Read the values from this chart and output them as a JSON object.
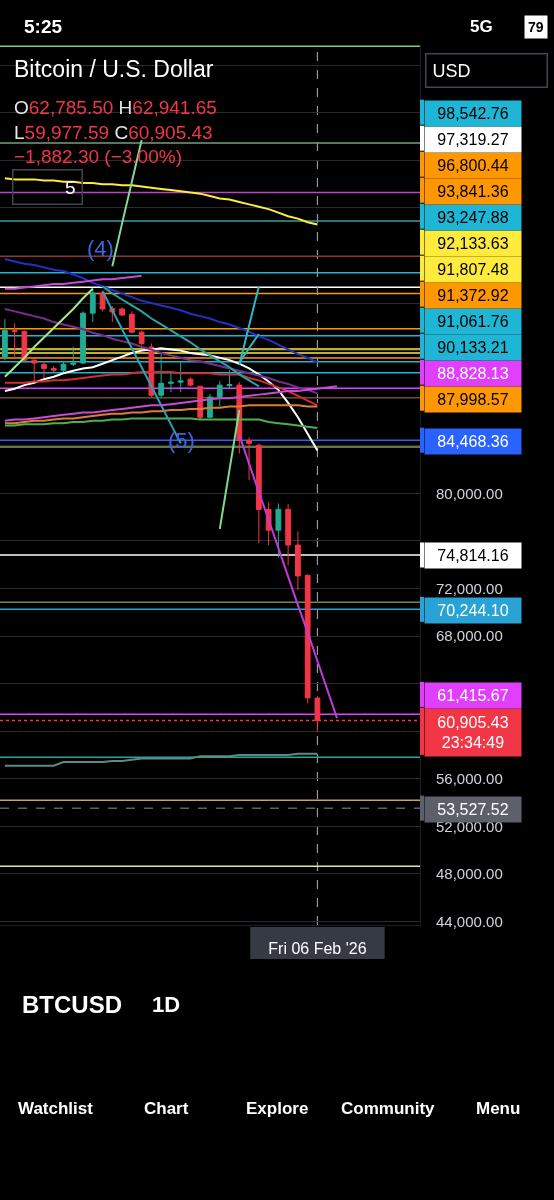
{
  "chart_data": {
    "type": "candlestick",
    "title": "Bitcoin / U.S. Dollar",
    "subtitle": "O62,785.50 H62,941.65\nL59,977.59 C60,905.43\n−1,882.30 (−3.00%)",
    "categories": [
      null,
      null,
      null,
      null,
      null,
      null,
      null,
      null,
      null,
      null,
      null,
      null,
      null,
      null,
      null,
      null,
      null,
      null,
      null,
      null,
      null,
      null,
      null,
      null,
      null,
      null,
      null,
      null,
      null,
      null,
      null,
      null,
      "Fri 06 Feb '26",
      null,
      null,
      null,
      null,
      null,
      null,
      null,
      null,
      null,
      null
    ],
    "ohlc": [
      [
        91450,
        94650,
        91200,
        93700
      ],
      [
        93700,
        94300,
        91300,
        93600
      ],
      [
        93600,
        93700,
        91000,
        91200
      ],
      [
        91200,
        91200,
        89250,
        90950
      ],
      [
        90850,
        91100,
        89700,
        90500
      ],
      [
        90500,
        90700,
        90200,
        90350
      ],
      [
        90350,
        91050,
        90200,
        90850
      ],
      [
        90850,
        92300,
        90700,
        90950
      ],
      [
        90950,
        95300,
        90900,
        95150
      ],
      [
        95150,
        97250,
        94400,
        96850
      ],
      [
        96850,
        97000,
        95300,
        95500
      ],
      [
        95550,
        95750,
        94400,
        95250
      ],
      [
        95500,
        95650,
        94900,
        95000
      ],
      [
        95050,
        95300,
        93450,
        93550
      ],
      [
        93550,
        93700,
        92450,
        92600
      ],
      [
        92300,
        92600,
        88100,
        88250
      ],
      [
        88250,
        91850,
        88000,
        89250
      ],
      [
        89250,
        90200,
        88500,
        89350
      ],
      [
        89350,
        91000,
        88500,
        89450
      ],
      [
        89600,
        89750,
        89000,
        89100
      ],
      [
        89000,
        89050,
        86150,
        86400
      ],
      [
        86400,
        88350,
        86350,
        88100
      ],
      [
        88100,
        89450,
        87300,
        89100
      ],
      [
        89050,
        90350,
        88850,
        89150
      ],
      [
        89100,
        89350,
        83350,
        84450
      ],
      [
        84450,
        84700,
        81100,
        84200
      ],
      [
        84050,
        84200,
        75800,
        78650
      ],
      [
        78650,
        79250,
        75650,
        76900
      ],
      [
        76900,
        79150,
        74600,
        78650
      ],
      [
        78650,
        79100,
        73950,
        75650
      ],
      [
        75650,
        76800,
        71850,
        73050
      ],
      [
        73100,
        73200,
        62350,
        62800
      ],
      [
        62785.5,
        62941.65,
        59977.59,
        60905.43
      ],
      null,
      null,
      null,
      null,
      null,
      null,
      null,
      null,
      null,
      null
    ],
    "colors": [
      "#22ab94",
      "#f23645",
      "#f23645",
      "#f23645",
      "#f23645",
      "#f23645",
      "#22ab94",
      "#22ab94",
      "#22ab94",
      "#22ab94",
      "#f23645",
      "#f23645",
      "#f23645",
      "#f23645",
      "#f23645",
      "#f23645",
      "#22ab94",
      "#22ab94",
      "#22ab94",
      "#f23645",
      "#f23645",
      "#22ab94",
      "#22ab94",
      "#22ab94",
      "#f23645",
      "#f23645",
      "#f23645",
      "#f23645",
      "#22ab94",
      "#f23645",
      "#f23645",
      "#f23645",
      "#f23645",
      null,
      null,
      null,
      null,
      null,
      null,
      null,
      null,
      null,
      null
    ],
    "series": [
      {
        "type": "line",
        "color": "#ffeb3b",
        "values": [
          106500,
          106400,
          106400,
          106400,
          106300,
          106300,
          106200,
          106200,
          106100,
          106100,
          106000,
          106000,
          105900,
          105900,
          105800,
          105700,
          105600,
          105500,
          105400,
          105300,
          105200,
          105000,
          104800,
          104700,
          104500,
          104300,
          104100,
          103900,
          103600,
          103300,
          103100,
          102800,
          102600,
          null,
          null,
          null,
          null,
          null,
          null,
          null,
          null,
          null,
          null
        ]
      },
      {
        "type": "line",
        "color": "#2230c8",
        "values": [
          99700,
          99500,
          99300,
          99200,
          99000,
          98800,
          98700,
          98400,
          98100,
          97700,
          97400,
          97100,
          96800,
          96500,
          96200,
          96000,
          95800,
          95600,
          95400,
          95100,
          94900,
          94700,
          94400,
          94200,
          93900,
          93600,
          93200,
          92900,
          92500,
          92100,
          91700,
          91400,
          91000,
          null,
          null,
          null,
          null,
          null,
          null,
          null,
          null,
          null,
          null
        ]
      },
      {
        "type": "line",
        "color": "#ffffff",
        "values": [
          88600,
          88800,
          89100,
          89300,
          89600,
          89800,
          90100,
          90300,
          90500,
          90600,
          90900,
          91200,
          91500,
          91800,
          92000,
          92100,
          92200,
          92100,
          92000,
          91800,
          91700,
          91600,
          91400,
          91200,
          90900,
          90500,
          90000,
          89400,
          88700,
          87600,
          86400,
          85000,
          83600,
          null,
          null,
          null,
          null,
          null,
          null,
          null,
          null,
          null,
          null
        ]
      },
      {
        "type": "line",
        "color": "#d32f2f",
        "values": [
          89300,
          89300,
          89300,
          89400,
          89400,
          89500,
          89500,
          89600,
          89700,
          89800,
          89900,
          90000,
          90000,
          90100,
          90200,
          90200,
          90200,
          90200,
          90100,
          90100,
          90100,
          90100,
          90000,
          90000,
          90000,
          89700,
          89500,
          89200,
          88900,
          88600,
          88200,
          87800,
          87400,
          null,
          null,
          null,
          null,
          null,
          null,
          null,
          null,
          null,
          null
        ]
      },
      {
        "type": "line",
        "color": "#7b2c8e",
        "values": [
          95500,
          95300,
          95100,
          94900,
          94700,
          94400,
          94200,
          94000,
          93800,
          93500,
          93300,
          93000,
          92800,
          92600,
          92300,
          92100,
          91800,
          91600,
          91400,
          91200,
          91100,
          90900,
          90700,
          90500,
          90300,
          90100,
          89900,
          89700,
          89400,
          89200,
          88900,
          88700,
          88400,
          null,
          null,
          null,
          null,
          null,
          null,
          null,
          null,
          null,
          null
        ]
      },
      {
        "type": "line",
        "color": "#e07b39",
        "values": [
          85900,
          85900,
          86000,
          86100,
          86100,
          86200,
          86300,
          86300,
          86400,
          86500,
          86600,
          86700,
          86700,
          86800,
          86800,
          86900,
          86900,
          87000,
          87000,
          87100,
          87100,
          87200,
          87200,
          87300,
          87300,
          87400,
          87400,
          87400,
          87400,
          87400,
          87400,
          87300,
          87300,
          null,
          null,
          null,
          null,
          null,
          null,
          null,
          null,
          null,
          null
        ]
      },
      {
        "type": "line",
        "color": "#4caf50",
        "values": [
          85700,
          85700,
          85800,
          85800,
          85800,
          85900,
          85900,
          86000,
          86000,
          86100,
          86100,
          86200,
          86200,
          86300,
          86300,
          86300,
          86300,
          86300,
          86300,
          86300,
          86200,
          86200,
          86200,
          86200,
          86200,
          86200,
          86200,
          86000,
          85900,
          85800,
          85700,
          85600,
          85500,
          null,
          null,
          null,
          null,
          null,
          null,
          null,
          null,
          null,
          null
        ]
      },
      {
        "type": "line",
        "color": "#5d8a84",
        "values": [
          57100,
          57100,
          57100,
          57100,
          57100,
          57100,
          57400,
          57400,
          57400,
          57400,
          57400,
          57500,
          57500,
          57600,
          57700,
          57700,
          57700,
          57700,
          57700,
          57700,
          57900,
          57900,
          57900,
          57900,
          58000,
          58000,
          58000,
          58000,
          58000,
          58000,
          58100,
          58100,
          58100,
          null,
          null,
          null,
          null,
          null,
          null,
          null,
          null,
          null,
          null
        ]
      },
      {
        "type": "line",
        "color": "#a5e887",
        "values": [
          89800,
          90600,
          91400,
          92300,
          93100,
          93900,
          94700,
          95500,
          96400,
          97200,
          null,
          null,
          null,
          null,
          null,
          null,
          null,
          null,
          null,
          null,
          null,
          null,
          null,
          null,
          null,
          null,
          null,
          null,
          null,
          null,
          null,
          null,
          null,
          null,
          null,
          null,
          null,
          null,
          null,
          null,
          null,
          null,
          null
        ]
      },
      {
        "type": "line",
        "color": "#86d694",
        "values": [
          null,
          null,
          null,
          null,
          null,
          null,
          null,
          null,
          null,
          null,
          null,
          99100,
          102700,
          106200,
          109700,
          null,
          null,
          null,
          null,
          null,
          null,
          null,
          null,
          null,
          null,
          null,
          null,
          null,
          null,
          null,
          null,
          null,
          null,
          null,
          null,
          null,
          null,
          null,
          null,
          null,
          null,
          null,
          null
        ]
      },
      {
        "type": "line",
        "color": "#26a6a6",
        "values": [
          null,
          null,
          null,
          null,
          null,
          null,
          null,
          null,
          null,
          null,
          97400,
          96800,
          96300,
          95800,
          95300,
          94700,
          94200,
          93700,
          93200,
          92700,
          92100,
          91600,
          91100,
          90600,
          90000,
          89500,
          89000,
          null,
          null,
          null,
          null,
          null,
          null,
          null,
          null,
          null,
          null,
          null,
          null,
          null,
          null,
          null,
          null
        ]
      },
      {
        "type": "line",
        "color": "#2aa3b5",
        "values": [
          null,
          null,
          null,
          null,
          null,
          null,
          null,
          null,
          null,
          null,
          97000,
          95400,
          93800,
          92200,
          90600,
          89000,
          87400,
          85800,
          84200,
          null,
          null,
          null,
          null,
          null,
          null,
          null,
          null,
          null,
          null,
          null,
          null,
          null,
          null,
          null,
          null,
          null,
          null,
          null,
          null,
          null,
          null,
          null,
          null
        ]
      },
      {
        "type": "line",
        "color": "#2ab8c8",
        "values": [
          null,
          null,
          null,
          null,
          null,
          null,
          null,
          null,
          null,
          null,
          null,
          null,
          null,
          null,
          null,
          null,
          null,
          null,
          null,
          null,
          null,
          null,
          null,
          null,
          90800,
          94100,
          97400,
          null,
          null,
          null,
          null,
          null,
          null,
          null,
          null,
          null,
          null,
          null,
          null,
          null,
          null,
          null,
          null
        ]
      },
      {
        "type": "line",
        "color": "#2ab8c8",
        "values": [
          null,
          null,
          null,
          null,
          null,
          null,
          null,
          null,
          null,
          null,
          null,
          null,
          null,
          null,
          null,
          null,
          null,
          null,
          null,
          null,
          null,
          null,
          null,
          null,
          91000,
          92200,
          93400,
          null,
          null,
          null,
          null,
          null,
          null,
          null,
          null,
          null,
          null,
          null,
          null,
          null,
          null,
          null,
          null
        ]
      },
      {
        "type": "line",
        "color": "#7ddc8a",
        "values": [
          null,
          null,
          null,
          null,
          null,
          null,
          null,
          null,
          null,
          null,
          null,
          null,
          null,
          null,
          null,
          null,
          null,
          null,
          null,
          null,
          null,
          null,
          77000,
          82000,
          87000,
          null,
          null,
          null,
          null,
          null,
          null,
          null,
          null,
          null,
          null,
          null,
          null,
          null,
          null,
          null,
          null,
          null,
          null
        ]
      },
      {
        "type": "line",
        "color": "#c64bd6",
        "values": [
          97200,
          97200,
          97300,
          97400,
          97500,
          97600,
          97600,
          97700,
          97800,
          97900,
          98000,
          98000,
          98100,
          98200,
          98300,
          null,
          null,
          null,
          null,
          null,
          null,
          null,
          null,
          null,
          null,
          null,
          null,
          null,
          null,
          null,
          null,
          null,
          null,
          null,
          null,
          null,
          null,
          null,
          null,
          null,
          null,
          null,
          null
        ]
      },
      {
        "type": "line",
        "color": "#c64bd6",
        "values": [
          86100,
          86200,
          86200,
          86300,
          86400,
          86500,
          86600,
          86700,
          86800,
          86800,
          86900,
          87000,
          87100,
          87200,
          87300,
          87400,
          87400,
          87500,
          87600,
          87700,
          87800,
          87900,
          88000,
          88000,
          88100,
          88200,
          88300,
          88400,
          88500,
          88600,
          88600,
          88700,
          88800,
          88900,
          89000,
          null,
          null,
          null,
          null,
          null,
          null,
          null,
          null
        ]
      },
      {
        "type": "line",
        "color": "#c13bd6",
        "values": [
          null,
          null,
          null,
          null,
          null,
          null,
          null,
          null,
          null,
          null,
          null,
          null,
          null,
          null,
          null,
          null,
          null,
          null,
          null,
          null,
          null,
          null,
          null,
          null,
          84900,
          82500,
          80100,
          77800,
          75400,
          73000,
          70600,
          68300,
          65900,
          63500,
          61100,
          null,
          null,
          null,
          null,
          null,
          null,
          null,
          null
        ]
      }
    ],
    "ylim": [
      43700,
      117700
    ],
    "yticks": [
      {
        "value": 44000,
        "label": "44,000.00"
      },
      {
        "value": 48000,
        "label": "48,000.00"
      },
      {
        "value": 52000,
        "label": "52,000.00"
      },
      {
        "value": 56000,
        "label": "56,000.00"
      },
      {
        "value": 60000,
        "label": null
      },
      {
        "value": 64000,
        "label": null
      },
      {
        "value": 68000,
        "label": "68,000.00"
      },
      {
        "value": 72000,
        "label": "72,000.00"
      },
      {
        "value": 76000,
        "label": null
      },
      {
        "value": 80000,
        "label": "80,000.00"
      },
      {
        "value": 84000,
        "label": null
      },
      {
        "value": 88000,
        "label": null
      },
      {
        "value": 92000,
        "label": null
      },
      {
        "value": 96000,
        "label": null
      },
      {
        "value": 100000,
        "label": null
      },
      {
        "value": 104000,
        "label": null
      },
      {
        "value": 108000,
        "label": null
      },
      {
        "value": 112000,
        "label": null
      },
      {
        "value": 116000,
        "label": null
      }
    ],
    "ref_lines": [
      {
        "axis": "y",
        "value": 98542.76,
        "label": "98,542.76",
        "color": "#1fb6d5"
      },
      {
        "axis": "y",
        "value": 97319.27,
        "label": "97,319.27",
        "color": "#ffffff"
      },
      {
        "axis": "y",
        "value": 96800.44,
        "label": "96,800.44",
        "color": "#ff9800"
      },
      {
        "axis": "y",
        "value": 93841.36,
        "label": "93,841.36",
        "color": "#ff9800"
      },
      {
        "axis": "y",
        "value": 93247.88,
        "label": "93,247.88",
        "color": "#1fb6d5"
      },
      {
        "axis": "y",
        "value": 92133.63,
        "label": "92,133.63",
        "color": "#ffeb3b"
      },
      {
        "axis": "y",
        "value": 91807.48,
        "label": "91,807.48",
        "color": "#ffeb3b"
      },
      {
        "axis": "y",
        "value": 91372.92,
        "label": "91,372.92",
        "color": "#ff9800"
      },
      {
        "axis": "y",
        "value": 91061.76,
        "label": "91,061.76",
        "color": "#1fb6d5"
      },
      {
        "axis": "y",
        "value": 90133.21,
        "label": "90,133.21",
        "color": "#1fb6d5"
      },
      {
        "axis": "y",
        "value": 88828.13,
        "label": "88,828.13",
        "color": "#e040fb"
      },
      {
        "axis": "y",
        "value": 87998.57,
        "label": "87,998.57",
        "color": "#ff9800"
      },
      {
        "axis": "y",
        "value": 84468.36,
        "label": "84,468.36",
        "color": "#2962ff"
      },
      {
        "axis": "y",
        "value": 74814.16,
        "label": "74,814.16",
        "color": "#ffffff"
      },
      {
        "axis": "y",
        "value": 70244.1,
        "label": "70,244.10",
        "color": "#29a3d6"
      },
      {
        "axis": "y",
        "value": 61415.67,
        "label": "61,415.67",
        "color": "#e040fb"
      },
      {
        "axis": "y",
        "value": 60905.43,
        "label": "60,905.43\n23:34:49",
        "color": "#f23645",
        "line_style": "dotted"
      },
      {
        "axis": "y",
        "value": 53527.52,
        "label": "53,527.52",
        "color": "#5d606b",
        "line_style": "dashed"
      },
      {
        "axis": "x",
        "value": "Fri 06 Feb '26",
        "color": "#9598a1",
        "line_style": "dashed"
      },
      {
        "axis": "y",
        "value": 117600,
        "color": "#81c784"
      },
      {
        "axis": "y",
        "value": 109450,
        "color": "#7a9e7e"
      },
      {
        "axis": "y",
        "value": 105300,
        "color": "#ba45c8"
      },
      {
        "axis": "y",
        "value": 102900,
        "color": "#3a9ca0"
      },
      {
        "axis": "y",
        "value": 99950,
        "color": "#d04040"
      },
      {
        "axis": "y",
        "value": 83900,
        "color": "#8a9a5b"
      },
      {
        "axis": "y",
        "value": 70850,
        "color": "#6b8e4e"
      },
      {
        "axis": "y",
        "value": 57800,
        "color": "#26a69a"
      },
      {
        "axis": "y",
        "value": 54200,
        "color": "#c8a26a"
      },
      {
        "axis": "y",
        "value": 48650,
        "color": "#e6e6a0"
      }
    ],
    "annotations": [
      "5:25",
      "5G",
      "79",
      "USD",
      "5",
      "(4)",
      "(5)",
      "BTCUSD",
      "1D",
      "Watchlist",
      "Chart",
      "Explore",
      "Community",
      "Menu"
    ],
    "grid": "y",
    "legend": "right"
  }
}
